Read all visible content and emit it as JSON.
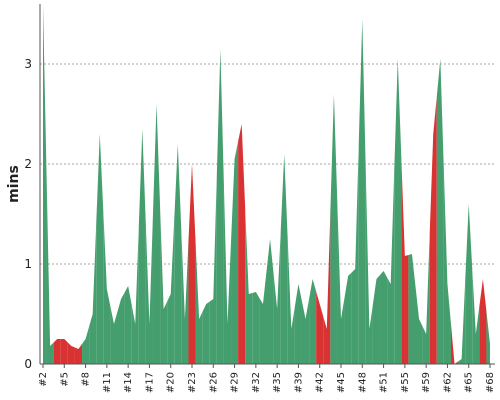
{
  "chart_data": {
    "type": "area",
    "y_label": "mins",
    "categories": [
      "#2",
      null,
      null,
      "#5",
      null,
      null,
      "#8",
      null,
      null,
      "#11",
      null,
      null,
      "#14",
      null,
      null,
      "#17",
      null,
      null,
      "#20",
      null,
      null,
      "#23",
      null,
      null,
      "#26",
      null,
      null,
      "#29",
      null,
      null,
      "#32",
      null,
      null,
      "#35",
      null,
      null,
      "#39",
      null,
      null,
      "#42",
      null,
      null,
      "#45",
      null,
      null,
      "#48",
      null,
      null,
      "#51",
      null,
      null,
      "#55",
      null,
      null,
      "#59",
      null,
      null,
      "#62",
      null,
      null,
      "#65",
      null,
      null,
      "#68"
    ],
    "values": [
      3.6,
      0.18,
      0.25,
      0.25,
      0.18,
      0.15,
      0.25,
      0.5,
      2.3,
      0.75,
      0.4,
      0.65,
      0.78,
      0.4,
      2.35,
      0.4,
      2.6,
      0.55,
      0.7,
      2.2,
      0.45,
      2.0,
      0.45,
      0.6,
      0.65,
      3.15,
      0.4,
      2.05,
      2.4,
      0.7,
      0.72,
      0.6,
      1.25,
      0.55,
      2.1,
      0.35,
      0.8,
      0.45,
      0.85,
      0.6,
      0.35,
      2.7,
      0.45,
      0.88,
      0.95,
      3.45,
      0.35,
      0.85,
      0.93,
      0.8,
      3.05,
      1.08,
      1.1,
      0.45,
      0.3,
      2.3,
      3.05,
      0.8,
      0,
      0.05,
      1.6,
      0.3,
      0.85,
      0.2
    ],
    "point_colors": [
      "#459e6d",
      "#459e6d",
      "#d83232",
      "#d83232",
      "#d83232",
      "#d83232",
      "#459e6d",
      "#459e6d",
      "#459e6d",
      "#459e6d",
      "#459e6d",
      "#459e6d",
      "#459e6d",
      "#459e6d",
      "#459e6d",
      "#459e6d",
      "#459e6d",
      "#459e6d",
      "#459e6d",
      "#459e6d",
      "#459e6d",
      "#d83232",
      "#459e6d",
      "#459e6d",
      "#459e6d",
      "#459e6d",
      "#459e6d",
      "#459e6d",
      "#d83232",
      "#459e6d",
      "#459e6d",
      "#459e6d",
      "#459e6d",
      "#459e6d",
      "#459e6d",
      "#459e6d",
      "#459e6d",
      "#459e6d",
      "#459e6d",
      "#d83232",
      "#d83232",
      "#459e6d",
      "#459e6d",
      "#459e6d",
      "#459e6d",
      "#459e6d",
      "#459e6d",
      "#459e6d",
      "#459e6d",
      "#459e6d",
      "#459e6d",
      "#d83232",
      "#459e6d",
      "#459e6d",
      "#459e6d",
      "#d83232",
      "#459e6d",
      "#459e6d",
      "#d83232",
      "#459e6d",
      "#459e6d",
      "#459e6d",
      "#d83232",
      "#459e6d"
    ],
    "ylim": [
      0,
      3.6
    ],
    "yticks": [
      0,
      1,
      2,
      3
    ],
    "grid": true
  }
}
